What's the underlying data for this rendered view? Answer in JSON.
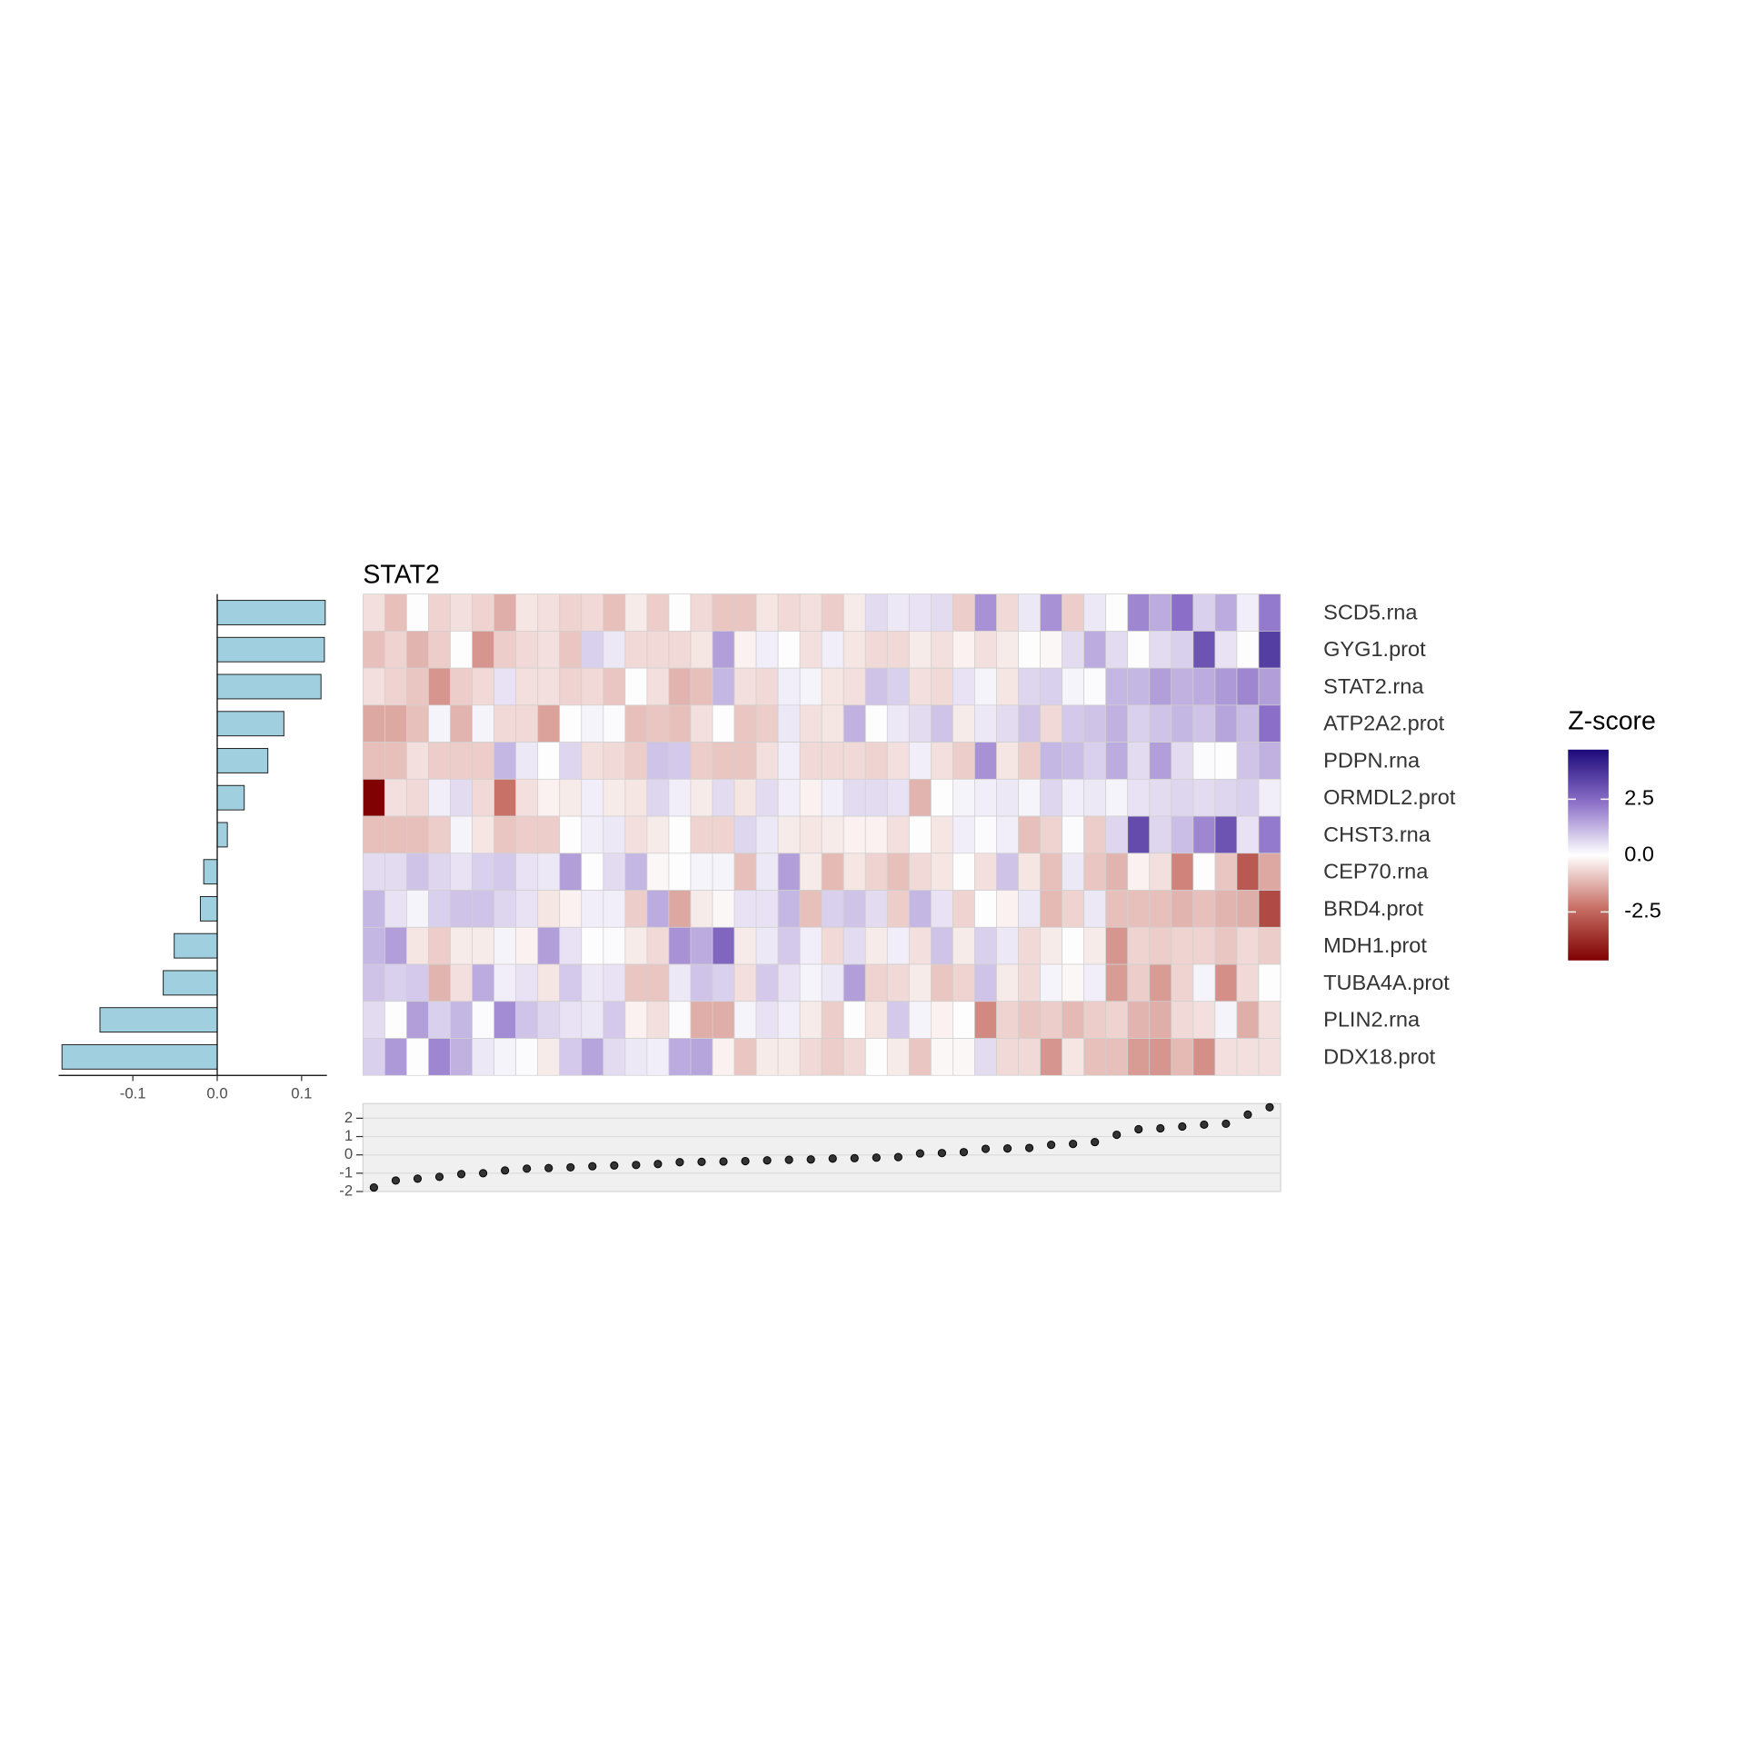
{
  "chart_data": [
    {
      "type": "hbar",
      "values": [
        0.128,
        0.127,
        0.123,
        0.079,
        0.06,
        0.032,
        0.012,
        -0.016,
        -0.02,
        -0.051,
        -0.064,
        -0.139,
        -0.184
      ],
      "color": "#a0d0e0",
      "xlim": [
        -0.188,
        0.13
      ],
      "xticks": [
        -0.1,
        {
          "value": 0,
          "label": "0.0"
        },
        0.1
      ]
    },
    {
      "type": "heatmap",
      "title": "STAT2",
      "rows": [
        "SCD5.rna",
        "GYG1.prot",
        "STAT2.rna",
        "ATP2A2.prot",
        "PDPN.rna",
        "ORMDL2.prot",
        "CHST3.rna",
        "CEP70.rna",
        "BRD4.prot",
        "MDH1.prot",
        "TUBA4A.prot",
        "PLIN2.rna",
        "DDX18.prot"
      ],
      "values": [
        [
          -0.5,
          -1,
          0,
          -0.7,
          -0.5,
          -0.7,
          -1.3,
          -0.4,
          -0.5,
          -0.7,
          -0.6,
          -1,
          -0.3,
          -0.8,
          0,
          -0.6,
          -0.9,
          -0.9,
          -0.4,
          -0.6,
          -0.5,
          -0.8,
          -0.3,
          0.6,
          0.4,
          0.5,
          0.6,
          -0.8,
          1.8,
          -0.6,
          0.4,
          1.8,
          -0.8,
          0.4,
          0,
          2,
          1.4,
          2.4,
          0.8,
          1.4,
          0.3,
          2.2
        ],
        [
          -1,
          -0.7,
          -1.2,
          -0.8,
          0,
          -1.7,
          -0.8,
          -0.6,
          -0.5,
          -0.9,
          0.8,
          0.4,
          -0.6,
          -0.6,
          -0.6,
          -0.4,
          1.6,
          -0.2,
          0.3,
          0,
          -0.5,
          0.3,
          -0.4,
          -0.6,
          -0.6,
          -0.3,
          -0.5,
          -0.2,
          -0.5,
          -0.3,
          0,
          -0.1,
          0.6,
          1.4,
          0.6,
          0,
          0.6,
          0.8,
          3,
          0.5,
          0,
          3.5
        ],
        [
          -0.5,
          -0.7,
          -0.9,
          -1.7,
          -0.8,
          -0.6,
          0.5,
          -0.5,
          -0.5,
          -0.7,
          -0.6,
          -0.9,
          0,
          -0.5,
          -1.2,
          -1,
          1.2,
          -0.5,
          -0.6,
          0.3,
          0.2,
          -0.4,
          -0.5,
          1,
          0.8,
          -0.5,
          -0.6,
          0.5,
          0.2,
          -0.4,
          0.7,
          0.8,
          0.2,
          0.1,
          1.2,
          1.2,
          1.6,
          1.3,
          1.4,
          1.7,
          2,
          1.6
        ],
        [
          -1.4,
          -1.4,
          -1,
          0.2,
          -1.2,
          0.2,
          -0.6,
          -0.6,
          -1.5,
          0,
          0.2,
          0.1,
          -1,
          -0.9,
          -1,
          -0.5,
          0,
          -0.9,
          -0.8,
          0.4,
          -0.5,
          -0.4,
          1.3,
          0,
          0.4,
          0.6,
          1,
          -0.3,
          0.4,
          0.6,
          1,
          -0.6,
          0.9,
          1,
          1.3,
          0.8,
          1,
          1.2,
          1,
          1.5,
          1.1,
          2.4
        ],
        [
          -1,
          -1,
          -0.5,
          -0.8,
          -0.8,
          -0.8,
          1.2,
          0.4,
          0,
          0.7,
          -0.5,
          -0.6,
          -0.8,
          1,
          0.9,
          -0.8,
          -0.9,
          -0.9,
          -0.5,
          0.3,
          -0.6,
          -0.6,
          -0.6,
          -0.7,
          -0.5,
          0.3,
          -0.5,
          -0.8,
          1.8,
          -0.4,
          -0.8,
          1.2,
          1.1,
          0.8,
          1.4,
          0.6,
          1.6,
          0.6,
          0.1,
          0,
          1,
          1.3
        ],
        [
          -4.6,
          -0.5,
          -0.6,
          0.3,
          0.6,
          -0.6,
          -2.3,
          -0.5,
          -0.2,
          -0.3,
          0.3,
          -0.3,
          -0.4,
          0.7,
          0.3,
          -0.3,
          0.6,
          -0.4,
          0.6,
          0.3,
          -0.2,
          0.3,
          0.6,
          0.6,
          0.5,
          -1.2,
          0,
          0.2,
          0.3,
          0.4,
          0.2,
          0.7,
          0.3,
          0.4,
          0.2,
          0.5,
          0.6,
          0.7,
          0.6,
          0.7,
          0.8,
          0.3
        ],
        [
          -1,
          -1,
          -1,
          -0.8,
          0.2,
          -0.4,
          -0.9,
          -0.8,
          -0.8,
          0,
          0.3,
          0.4,
          -0.5,
          -0.3,
          0,
          -0.7,
          -0.7,
          0.7,
          0.4,
          -0.3,
          -0.4,
          -0.3,
          -0.2,
          -0.2,
          -0.5,
          0,
          -0.4,
          0.3,
          0.1,
          0.3,
          -1,
          -0.7,
          0.1,
          -0.8,
          0.7,
          3.2,
          0.7,
          1.1,
          2,
          3,
          0.5,
          2.2
        ],
        [
          0.6,
          0.6,
          1,
          0.7,
          0.5,
          0.8,
          0.9,
          0.5,
          0.4,
          1.6,
          0,
          0.6,
          1.2,
          -0.1,
          0,
          0.2,
          0.2,
          -1,
          0.4,
          1.6,
          -0.3,
          -1.1,
          -0.4,
          -0.7,
          -1,
          -0.6,
          -0.4,
          0,
          -0.5,
          1,
          -0.4,
          -1,
          0.4,
          -0.9,
          -1.2,
          -0.2,
          -0.5,
          -2,
          0,
          -0.9,
          -2.8,
          -1.4
        ],
        [
          1.2,
          0.5,
          0.2,
          0.8,
          1,
          1,
          0.7,
          0.5,
          -0.4,
          -0.2,
          0.3,
          0.3,
          -0.8,
          1.4,
          -1.4,
          -0.3,
          -0.1,
          0.5,
          0.5,
          1.2,
          -1,
          0.8,
          1,
          0.6,
          -0.8,
          1.2,
          0.5,
          -0.7,
          0,
          -0.2,
          0.4,
          -1.1,
          -0.7,
          0.4,
          -1,
          -1,
          -1,
          -1.2,
          -1,
          -1.2,
          -1.3,
          -3.1
        ],
        [
          1.2,
          1.6,
          -0.4,
          -0.8,
          -0.3,
          -0.3,
          0.2,
          -0.2,
          1.6,
          0.5,
          0,
          0.1,
          -0.3,
          -0.6,
          1.8,
          1.4,
          2.6,
          -0.3,
          0.4,
          0.9,
          0.3,
          -0.6,
          0.6,
          -0.3,
          0.3,
          -0.5,
          1,
          -0.3,
          0.8,
          0.4,
          -0.6,
          -0.3,
          0,
          -0.3,
          -1.7,
          -0.7,
          -0.8,
          -0.7,
          -0.7,
          -0.9,
          -0.6,
          -0.8
        ],
        [
          1,
          0.8,
          0.9,
          -1.2,
          -0.5,
          1.4,
          0.3,
          0.5,
          -0.4,
          0.9,
          0.4,
          0.5,
          -0.9,
          -0.9,
          0.4,
          1,
          0.8,
          -0.5,
          0.9,
          0.5,
          0.2,
          0.4,
          1.6,
          -0.7,
          -0.6,
          -0.3,
          -0.9,
          -0.7,
          1,
          -0.3,
          -0.6,
          0.2,
          -0.1,
          0.3,
          -1.6,
          -0.8,
          -1.6,
          -0.7,
          0.2,
          -1.8,
          -0.6,
          0
        ],
        [
          0.6,
          0,
          1.6,
          0.8,
          1.2,
          0.1,
          1.9,
          1,
          0.7,
          0.5,
          0.4,
          0.9,
          -0.2,
          -0.5,
          0.1,
          -1.3,
          -1.3,
          0.2,
          0.5,
          0.3,
          -0.3,
          -0.8,
          0,
          -0.4,
          0.9,
          0.2,
          -0.2,
          0,
          -1.9,
          -0.7,
          -0.9,
          -0.8,
          -1.1,
          -0.8,
          -0.7,
          -1.2,
          -1.3,
          -0.6,
          -0.5,
          0.2,
          -1.3,
          -0.5
        ],
        [
          0.8,
          1.7,
          0,
          2,
          1.3,
          0.4,
          0.2,
          0.1,
          -0.3,
          0.9,
          1.5,
          0.6,
          0.4,
          0.3,
          1.4,
          1.5,
          -0.2,
          -0.9,
          -0.3,
          -0.3,
          -0.6,
          -0.8,
          -0.6,
          0,
          -0.3,
          -0.9,
          -0.1,
          -0.1,
          0.6,
          -0.6,
          -0.6,
          -1.7,
          -0.4,
          -1,
          -1,
          -1.6,
          -1.7,
          -1.1,
          -1.8,
          -0.5,
          -0.5,
          -0.5
        ]
      ],
      "colors": [
        "#7f0000",
        "#c87066",
        "#ffffff",
        "#8c70c8",
        "#1c0a7a"
      ],
      "zlim": [
        -4.65,
        4.7
      ],
      "legend_title": "Z-score",
      "zticks": [
        -2.5,
        {
          "value": 0,
          "label": "0.0"
        },
        2.5
      ]
    },
    {
      "type": "dot",
      "values": [
        -1.78,
        -1.4,
        -1.3,
        -1.2,
        -1.05,
        -1,
        -0.85,
        -0.75,
        -0.72,
        -0.68,
        -0.62,
        -0.58,
        -0.55,
        -0.5,
        -0.4,
        -0.38,
        -0.36,
        -0.34,
        -0.3,
        -0.27,
        -0.25,
        -0.2,
        -0.18,
        -0.15,
        -0.12,
        0.08,
        0.1,
        0.15,
        0.33,
        0.35,
        0.38,
        0.55,
        0.6,
        0.7,
        1.1,
        1.4,
        1.45,
        1.55,
        1.65,
        1.7,
        2.2,
        2.6
      ],
      "color": "#333333",
      "ylim": [
        -2,
        2.8
      ],
      "yticks": [
        -2,
        -1,
        0,
        1,
        2
      ],
      "grid": true
    }
  ]
}
